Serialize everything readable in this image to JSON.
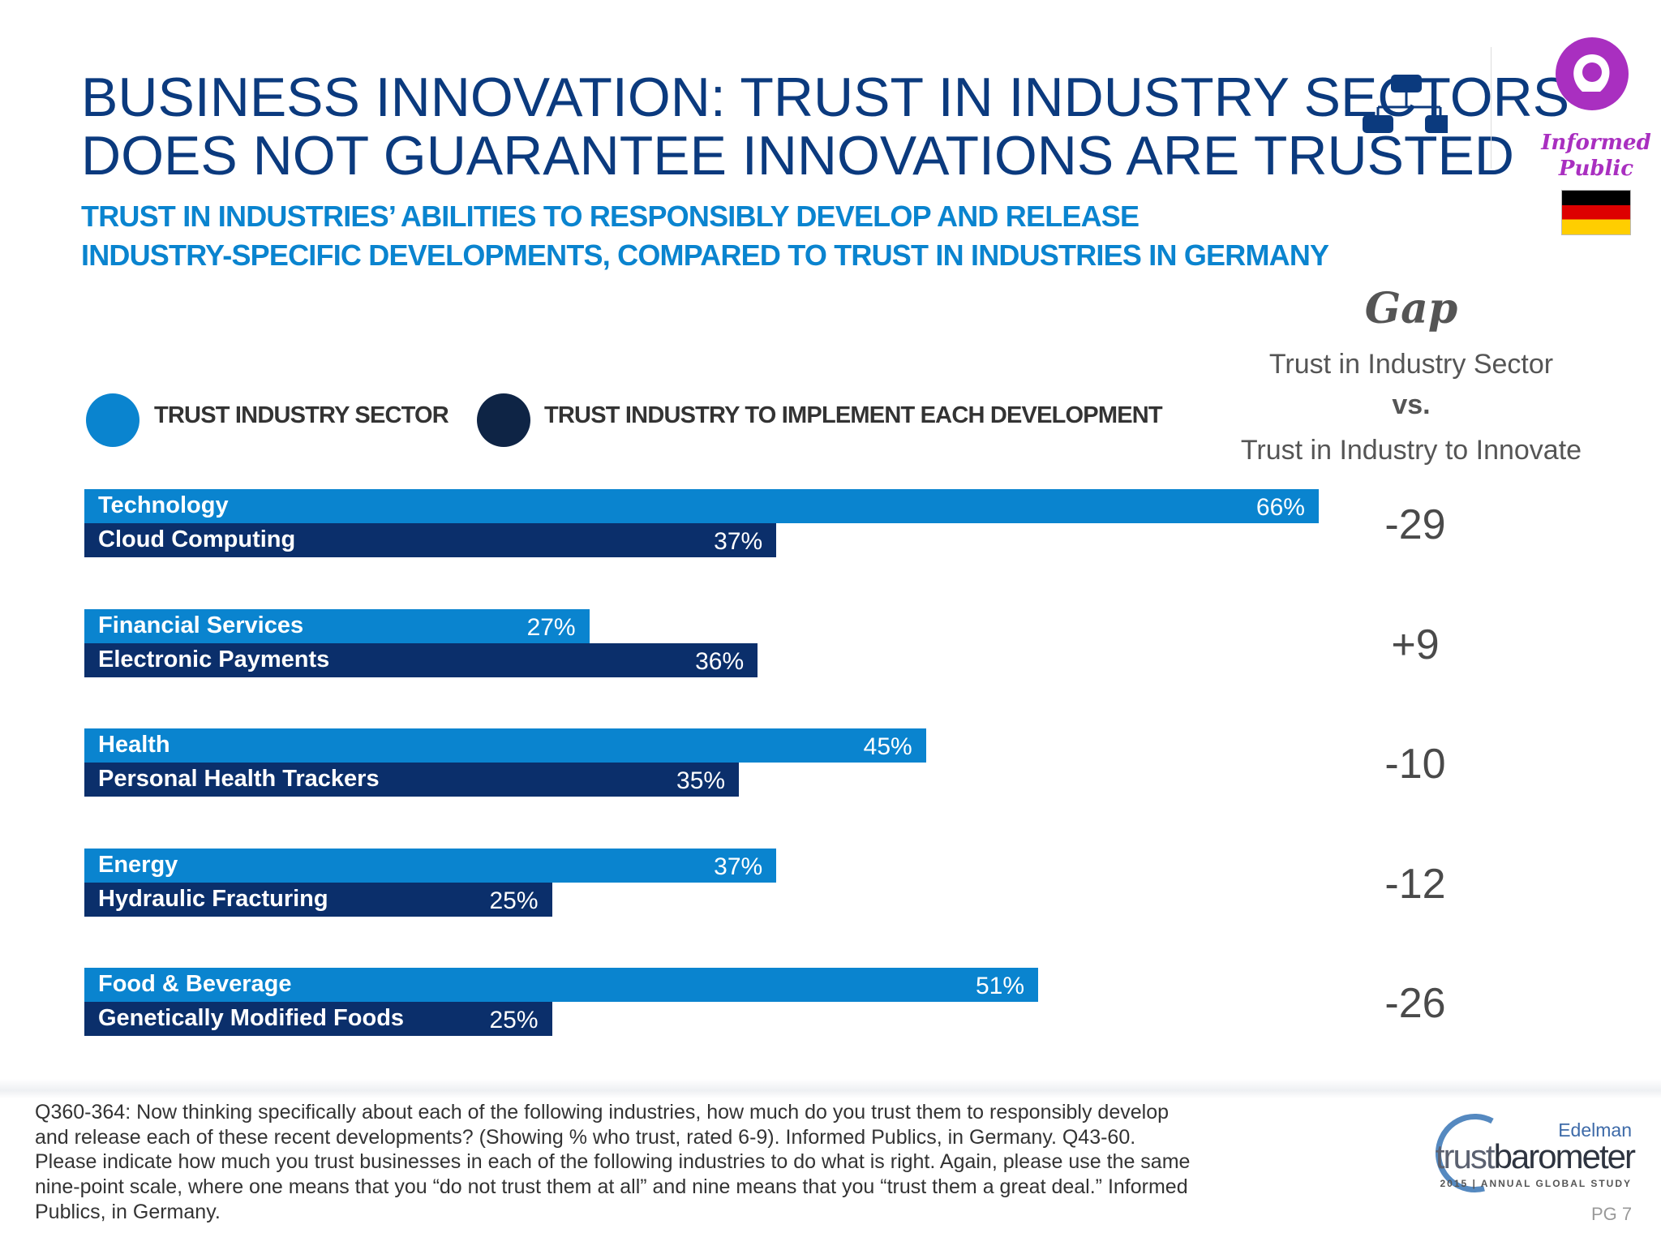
{
  "title_lines": [
    "BUSINESS INNOVATION: TRUST IN INDUSTRY SECTORS",
    "DOES NOT GUARANTEE INNOVATIONS ARE TRUSTED"
  ],
  "subtitle_lines": [
    "TRUST IN INDUSTRIES’ ABILITIES TO RESPONSIBLY DEVELOP AND RELEASE",
    "INDUSTRY-SPECIFIC DEVELOPMENTS, COMPARED TO TRUST IN INDUSTRIES IN GERMANY"
  ],
  "badge": {
    "text_line1": "Informed",
    "text_line2": "Public",
    "color": "#a92fc0",
    "flag": "germany"
  },
  "gap_header": {
    "title": "Gap",
    "line1": "Trust in Industry Sector",
    "line2": "vs.",
    "line3": "Trust in Industry to Innovate"
  },
  "colors": {
    "sector": "#0a84cf",
    "development": "#0b2f6b"
  },
  "chart_data": {
    "type": "bar",
    "orientation": "horizontal",
    "unit": "%",
    "xlim": [
      0,
      100
    ],
    "legend": [
      "TRUST INDUSTRY SECTOR",
      "TRUST INDUSTRY TO IMPLEMENT EACH DEVELOPMENT"
    ],
    "legend_position": "top",
    "groups": [
      {
        "sector": "Technology",
        "sector_value": 66,
        "development": "Cloud Computing",
        "development_value": 37,
        "gap": "-29"
      },
      {
        "sector": "Financial Services",
        "sector_value": 27,
        "development": "Electronic Payments",
        "development_value": 36,
        "gap": "+9"
      },
      {
        "sector": "Health",
        "sector_value": 45,
        "development": "Personal Health Trackers",
        "development_value": 35,
        "gap": "-10"
      },
      {
        "sector": "Energy",
        "sector_value": 37,
        "development": "Hydraulic Fracturing",
        "development_value": 25,
        "gap": "-12"
      },
      {
        "sector": "Food & Beverage",
        "sector_value": 51,
        "development": "Genetically Modified Foods",
        "development_value": 25,
        "gap": "-26"
      }
    ]
  },
  "footer": {
    "text": "Q360-364: Now thinking specifically about each of the following industries, how much do you trust them to responsibly develop and release each of these recent developments? (Showing % who trust, rated 6-9). Informed Publics, in Germany. Q43-60. Please indicate how much you trust businesses in each of the following industries to do what is right.  Again, please use the same nine-point scale, where one means that you “do not trust them at all” and nine means that you “trust them a great deal.” Informed Publics, in Germany.",
    "page": "PG 7"
  },
  "logo": {
    "brand": "Edelman",
    "name_light": "trust",
    "name_bold": "barometer",
    "tagline": "2015 | ANNUAL GLOBAL STUDY"
  }
}
